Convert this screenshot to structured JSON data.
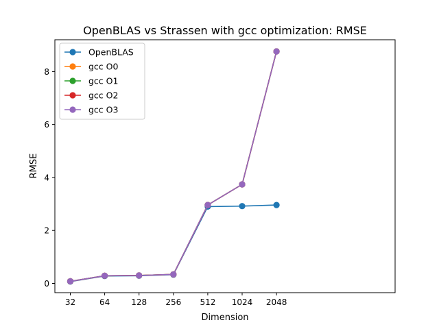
{
  "chart_data": {
    "type": "line",
    "title": "OpenBLAS vs Strassen with gcc optimization: RMSE",
    "xlabel": "Dimension",
    "ylabel": "RMSE",
    "categories": [
      "32",
      "64",
      "128",
      "256",
      "512",
      "1024",
      "2048"
    ],
    "ylim": [
      -0.35,
      9.2
    ],
    "yticks": [
      0,
      2,
      4,
      6,
      8
    ],
    "yticks_labels": [
      "0",
      "2",
      "4",
      "6",
      "8"
    ],
    "grid": false,
    "legend_position": "top-left",
    "series": [
      {
        "name": "OpenBLAS",
        "color": "#1f77b4",
        "marker": "circle",
        "values": [
          0.07,
          0.28,
          0.29,
          0.33,
          2.9,
          2.92,
          2.96
        ]
      },
      {
        "name": "gcc O0",
        "color": "#ff7f0e",
        "marker": "circle",
        "values": [
          0.08,
          0.29,
          0.3,
          0.34,
          2.96,
          3.74,
          8.76
        ]
      },
      {
        "name": "gcc O1",
        "color": "#2ca02c",
        "marker": "circle",
        "values": [
          0.08,
          0.29,
          0.3,
          0.34,
          2.96,
          3.74,
          8.76
        ]
      },
      {
        "name": "gcc O2",
        "color": "#d62728",
        "marker": "circle",
        "values": [
          0.08,
          0.29,
          0.3,
          0.34,
          2.96,
          3.74,
          8.76
        ]
      },
      {
        "name": "gcc O3",
        "color": "#9467bd",
        "marker": "circle",
        "values": [
          0.08,
          0.29,
          0.3,
          0.34,
          2.96,
          3.74,
          8.76
        ]
      }
    ]
  }
}
